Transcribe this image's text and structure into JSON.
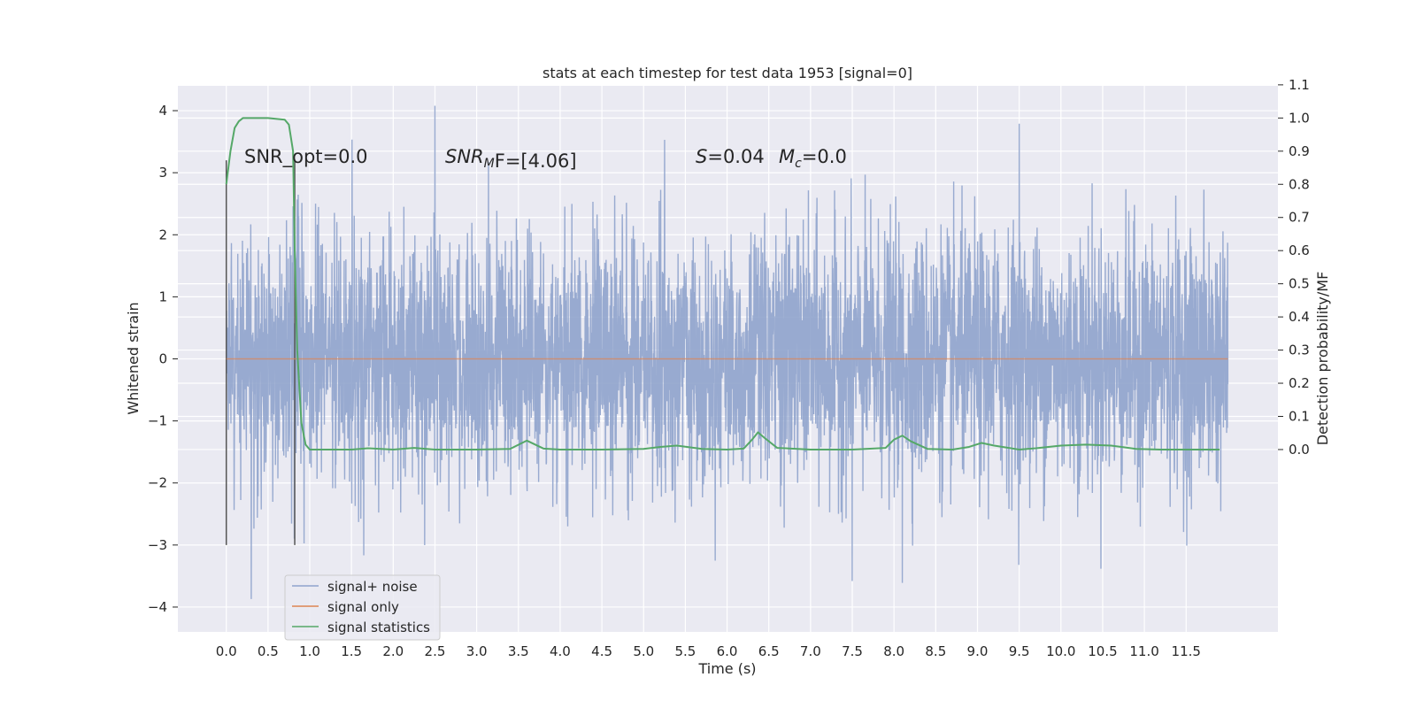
{
  "chart_data": {
    "type": "line",
    "title": "stats at each timestep for test data 1953 [signal=0]",
    "xlabel": "Time (s)",
    "ylabel": "Whitened strain",
    "y2label": "Detection probability/MF",
    "xlim": [
      -0.58,
      12.6
    ],
    "ylim": [
      -4.4,
      4.4
    ],
    "y2lim": [
      -0.55,
      1.097
    ],
    "grid": true,
    "xticks": [
      0.0,
      0.5,
      1.0,
      1.5,
      2.0,
      2.5,
      3.0,
      3.5,
      4.0,
      4.5,
      5.0,
      5.5,
      6.0,
      6.5,
      7.0,
      7.5,
      8.0,
      8.5,
      9.0,
      9.5,
      10.0,
      10.5,
      11.0,
      11.5
    ],
    "xtick_labels": [
      "0.0",
      "0.5",
      "1.0",
      "1.5",
      "2.0",
      "2.5",
      "3.0",
      "3.5",
      "4.0",
      "4.5",
      "5.0",
      "5.5",
      "6.0",
      "6.5",
      "7.0",
      "7.5",
      "8.0",
      "8.5",
      "9.0",
      "9.5",
      "10.0",
      "10.5",
      "11.0",
      "11.5"
    ],
    "yticks": [
      -4,
      -3,
      -2,
      -1,
      0,
      1,
      2,
      3,
      4
    ],
    "ytick_labels": [
      "−4",
      "−3",
      "−2",
      "−1",
      "0",
      "1",
      "2",
      "3",
      "4"
    ],
    "y2ticks": [
      0.0,
      0.1,
      0.2,
      0.3,
      0.4,
      0.5,
      0.6,
      0.7,
      0.8,
      0.9,
      1.0,
      1.1
    ],
    "y2tick_labels": [
      "0.0",
      "0.1",
      "0.2",
      "0.3",
      "0.4",
      "0.5",
      "0.6",
      "0.7",
      "0.8",
      "0.9",
      "1.0",
      "1.1"
    ],
    "annotations": {
      "snr_opt": "SNR_opt=0.0",
      "snr_mf": "SNR",
      "snr_mf_sub": "M",
      "snr_mf_rest": "F=[4.06]",
      "s_label": "S",
      "s_value": "=0.04",
      "mc_label": "M",
      "mc_sub": "c",
      "mc_value": "=0.0"
    },
    "vlines": [
      {
        "x": 0.0,
        "y_range": [
          -3.0,
          3.2
        ]
      },
      {
        "x": 0.82,
        "y_range": [
          -3.0,
          3.2
        ]
      }
    ],
    "legend_position": "lower left",
    "series": [
      {
        "name": "signal+ noise",
        "color": "#8fa3cc",
        "axis": "left",
        "x_range": [
          0.0,
          12.0
        ],
        "n_points": 4096,
        "envelope_std": 1.0,
        "notable_peaks": [
          {
            "x": 2.5,
            "y": 4.08
          },
          {
            "x": 9.5,
            "y": 3.79
          },
          {
            "x": 5.25,
            "y": 3.53
          },
          {
            "x": 0.3,
            "y": -3.87
          },
          {
            "x": 8.1,
            "y": -3.61
          },
          {
            "x": 7.5,
            "y": -3.58
          }
        ]
      },
      {
        "name": "signal only",
        "color": "#dd8452",
        "axis": "left",
        "x": [
          0.0,
          12.0
        ],
        "values": [
          0.0,
          0.0
        ]
      },
      {
        "name": "signal statistics",
        "color": "#55a868",
        "axis": "right",
        "x": [
          0.0,
          0.05,
          0.1,
          0.15,
          0.2,
          0.3,
          0.5,
          0.7,
          0.75,
          0.8,
          0.82,
          0.85,
          0.9,
          0.95,
          1.0,
          1.2,
          1.5,
          1.7,
          2.0,
          2.25,
          2.5,
          3.0,
          3.4,
          3.6,
          3.8,
          4.0,
          4.5,
          5.0,
          5.2,
          5.4,
          5.7,
          6.0,
          6.2,
          6.3,
          6.37,
          6.45,
          6.6,
          7.0,
          7.5,
          7.9,
          8.0,
          8.1,
          8.2,
          8.4,
          8.7,
          8.9,
          9.05,
          9.2,
          9.5,
          9.7,
          10.0,
          10.3,
          10.6,
          10.9,
          11.2,
          11.5,
          11.7,
          11.9
        ],
        "values": [
          0.8,
          0.9,
          0.97,
          0.99,
          1.0,
          1.0,
          1.0,
          0.995,
          0.98,
          0.9,
          0.6,
          0.3,
          0.08,
          0.015,
          0.0,
          0.0,
          0.0,
          0.004,
          0.0,
          0.005,
          0.0,
          0.0,
          0.002,
          0.027,
          0.003,
          0.0,
          0.0,
          0.002,
          0.008,
          0.012,
          0.002,
          0.0,
          0.003,
          0.03,
          0.052,
          0.035,
          0.005,
          0.0,
          0.0,
          0.005,
          0.03,
          0.042,
          0.025,
          0.002,
          0.0,
          0.008,
          0.02,
          0.012,
          0.0,
          0.004,
          0.012,
          0.015,
          0.012,
          0.002,
          0.0,
          0.0,
          0.0,
          0.0
        ]
      }
    ]
  }
}
